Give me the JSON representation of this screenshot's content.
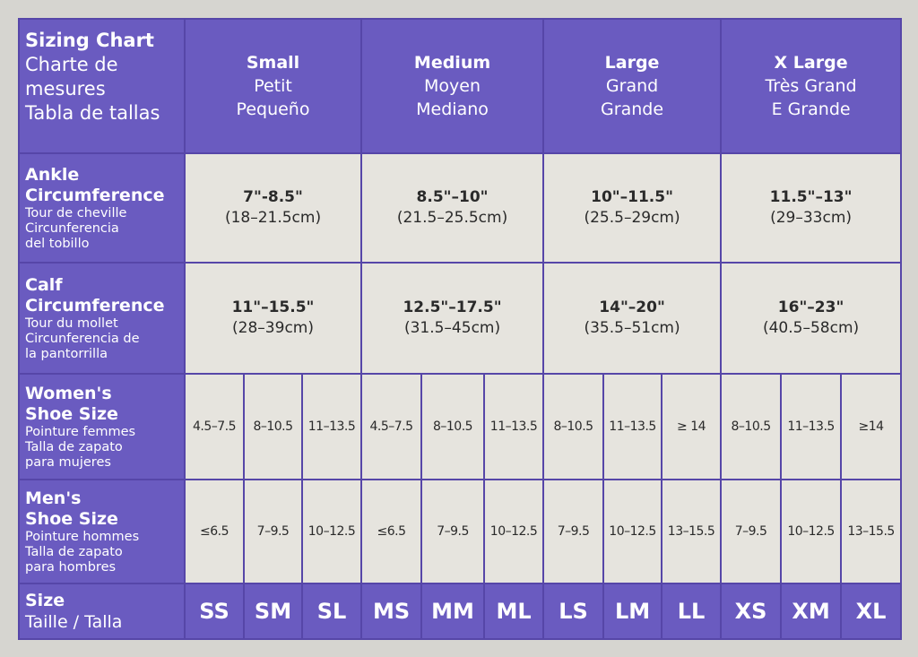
{
  "title": {
    "en": "Sizing Chart",
    "fr": "Charte de mesures",
    "es": "Tabla de tallas"
  },
  "sizes": [
    {
      "en": "Small",
      "fr": "Petit",
      "es": "Pequeño"
    },
    {
      "en": "Medium",
      "fr": "Moyen",
      "es": "Mediano"
    },
    {
      "en": "Large",
      "fr": "Grand",
      "es": "Grande"
    },
    {
      "en": "X Large",
      "fr": "Très Grand",
      "es": "E Grande"
    }
  ],
  "ankle": {
    "label_en_line1": "Ankle",
    "label_en_line2": "Circumference",
    "label_fr": "Tour de cheville",
    "label_es_line1": "Circunferencia",
    "label_es_line2": "del tobillo",
    "values": [
      {
        "inches": "7\"-8.5\"",
        "cm": "(18–21.5cm)"
      },
      {
        "inches": "8.5\"–10\"",
        "cm": "(21.5–25.5cm)"
      },
      {
        "inches": "10\"–11.5\"",
        "cm": "(25.5–29cm)"
      },
      {
        "inches": "11.5\"–13\"",
        "cm": "(29–33cm)"
      }
    ]
  },
  "calf": {
    "label_en_line1": "Calf",
    "label_en_line2": "Circumference",
    "label_fr": "Tour du mollet",
    "label_es_line1": "Circunferencia de",
    "label_es_line2": "la pantorrilla",
    "values": [
      {
        "inches": "11\"–15.5\"",
        "cm": "(28–39cm)"
      },
      {
        "inches": "12.5\"–17.5\"",
        "cm": "(31.5–45cm)"
      },
      {
        "inches": "14\"–20\"",
        "cm": "(35.5–51cm)"
      },
      {
        "inches": "16\"–23\"",
        "cm": "(40.5–58cm)"
      }
    ]
  },
  "womens": {
    "label_en_line1": "Women's",
    "label_en_line2": "Shoe Size",
    "label_fr": "Pointure femmes",
    "label_es_line1": "Talla de zapato",
    "label_es_line2": "para mujeres",
    "values": [
      "4.5–7.5",
      "8–10.5",
      "11–13.5",
      "4.5–7.5",
      "8–10.5",
      "11–13.5",
      "8–10.5",
      "11–13.5",
      "≥ 14",
      "8–10.5",
      "11–13.5",
      "≥14"
    ]
  },
  "mens": {
    "label_en_line1": "Men's",
    "label_en_line2": "Shoe Size",
    "label_fr": "Pointure hommes",
    "label_es_line1": "Talla de zapato",
    "label_es_line2": "para hombres",
    "values": [
      "≤6.5",
      "7–9.5",
      "10–12.5",
      "≤6.5",
      "7–9.5",
      "10–12.5",
      "7–9.5",
      "10–12.5",
      "13–15.5",
      "7–9.5",
      "10–12.5",
      "13–15.5"
    ]
  },
  "size_row": {
    "label_en": "Size",
    "label_fr_es": "Taille / Talla",
    "codes": [
      "SS",
      "SM",
      "SL",
      "MS",
      "MM",
      "ML",
      "LS",
      "LM",
      "LL",
      "XS",
      "XM",
      "XL"
    ]
  },
  "colors": {
    "purple": "#6a5bc0",
    "cell": "#e6e4de",
    "border": "#5646a8"
  }
}
